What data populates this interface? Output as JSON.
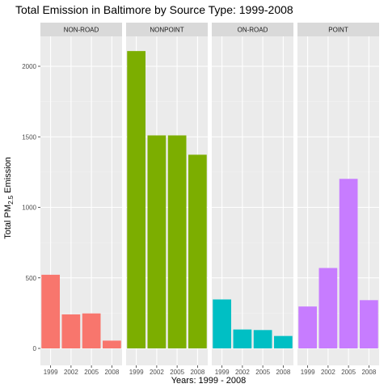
{
  "chart_data": {
    "type": "bar",
    "title": "Total Emission in Baltimore by Source Type: 1999-2008",
    "xlabel": "Years: 1999 - 2008",
    "ylabel_prefix": "Total PM",
    "ylabel_subscript": "2.5",
    "ylabel_suffix": " Emission",
    "categories": [
      "1999",
      "2002",
      "2005",
      "2008"
    ],
    "ylim": [
      0,
      2220
    ],
    "yticks": [
      0,
      500,
      1000,
      1500,
      2000
    ],
    "grid": true,
    "facets": [
      {
        "name": "NON-ROAD",
        "color": "#F8766D",
        "values": [
          522,
          241,
          248,
          55
        ]
      },
      {
        "name": "NONPOINT",
        "color": "#7CAE00",
        "values": [
          2108,
          1510,
          1510,
          1373
        ]
      },
      {
        "name": "ON-ROAD",
        "color": "#00BFC4",
        "values": [
          347,
          134,
          130,
          88
        ]
      },
      {
        "name": "POINT",
        "color": "#C77CFF",
        "values": [
          297,
          570,
          1202,
          342
        ]
      }
    ]
  }
}
